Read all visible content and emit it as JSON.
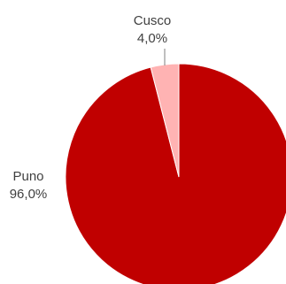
{
  "chart_data": {
    "type": "pie",
    "title": "",
    "start_angle_deg": 0,
    "direction": "clockwise",
    "slices": [
      {
        "name": "Puno",
        "value": 96.0,
        "value_label": "96,0%",
        "color": "#C00000"
      },
      {
        "name": "Cusco",
        "value": 4.0,
        "value_label": "4,0%",
        "color": "#FFB3B3"
      }
    ],
    "legend": "none",
    "label_color": "#404040",
    "leader_line_color": "#7f7f7f"
  }
}
